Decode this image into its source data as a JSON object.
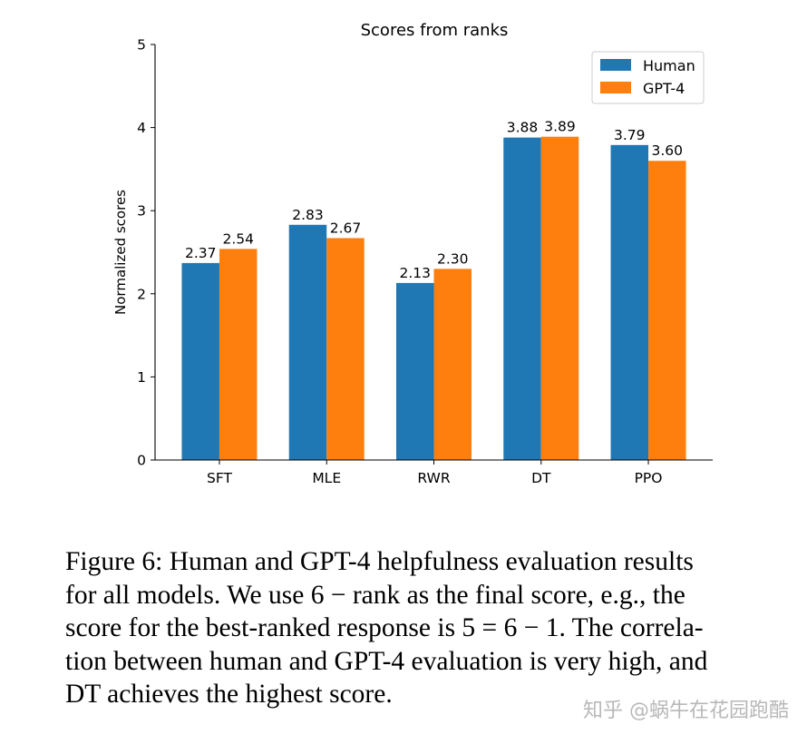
{
  "chart_data": {
    "type": "bar",
    "title": "Scores from ranks",
    "xlabel": "",
    "ylabel": "Normalized scores",
    "categories": [
      "SFT",
      "MLE",
      "RWR",
      "DT",
      "PPO"
    ],
    "series": [
      {
        "name": "Human",
        "color": "#1f77b4",
        "values": [
          2.37,
          2.83,
          2.13,
          3.88,
          3.79
        ],
        "labels": [
          "2.37",
          "2.83",
          "2.13",
          "3.88",
          "3.79"
        ]
      },
      {
        "name": "GPT-4",
        "color": "#ff7f0e",
        "values": [
          2.54,
          2.67,
          2.3,
          3.89,
          3.6
        ],
        "labels": [
          "2.54",
          "2.67",
          "2.30",
          "3.89",
          "3.60"
        ]
      }
    ],
    "ylim": [
      0,
      5
    ],
    "yticks": [
      "0",
      "1",
      "2",
      "3",
      "4",
      "5"
    ],
    "grid": false,
    "legend_position": "top-right"
  },
  "caption": {
    "lines": [
      "Figure 6: Human and GPT-4 helpfulness evaluation results",
      "for all models. We use 6 − rank as the final score, e.g., the",
      "score for the best-ranked response is 5 = 6 − 1. The correla-",
      "tion between human and GPT-4 evaluation is very high, and",
      "DT achieves the highest score."
    ]
  },
  "watermark": "知乎 @蜗牛在花园跑酷"
}
